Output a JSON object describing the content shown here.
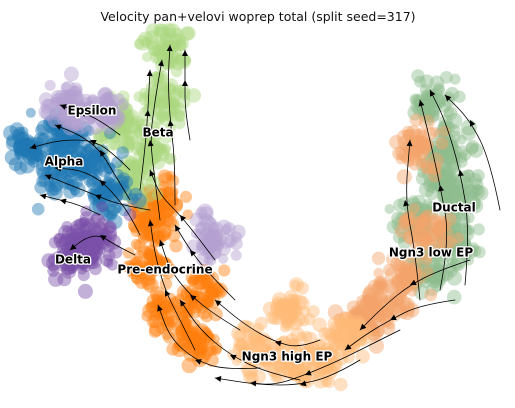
{
  "chart_data": {
    "type": "scatter",
    "title": "Velocity pan+velovi woprep total (split seed=317)",
    "xlabel": "",
    "ylabel": "",
    "grid": false,
    "axes_visible": false,
    "overlay": "streamlines",
    "series": [
      {
        "name": "Ductal",
        "color": "#8fbc8f",
        "centers": [
          [
            434,
            103
          ],
          [
            450,
            150
          ],
          [
            460,
            195
          ],
          [
            455,
            240
          ],
          [
            430,
            275
          ],
          [
            415,
            220
          ],
          [
            440,
            175
          ]
        ]
      },
      {
        "name": "Ngn3 low EP",
        "color": "#f4a46b",
        "centers": [
          [
            420,
            150
          ],
          [
            425,
            230
          ],
          [
            405,
            280
          ],
          [
            380,
            305
          ],
          [
            365,
            320
          ]
        ]
      },
      {
        "name": "Ngn3 high EP",
        "color": "#ffbb78",
        "centers": [
          [
            350,
            335
          ],
          [
            320,
            360
          ],
          [
            290,
            360
          ],
          [
            255,
            350
          ],
          [
            290,
            310
          ]
        ]
      },
      {
        "name": "Pre-endocrine",
        "color": "#ff7f0e",
        "centers": [
          [
            195,
            345
          ],
          [
            170,
            315
          ],
          [
            150,
            265
          ],
          [
            150,
            225
          ],
          [
            160,
            200
          ],
          [
            200,
            290
          ]
        ]
      },
      {
        "name": "Beta",
        "color": "#aad67f",
        "centers": [
          [
            165,
            45
          ],
          [
            165,
            100
          ],
          [
            150,
            150
          ],
          [
            130,
            180
          ],
          [
            120,
            125
          ]
        ]
      },
      {
        "name": "Alpha",
        "color": "#1f77b4",
        "centers": [
          [
            30,
            150
          ],
          [
            60,
            140
          ],
          [
            90,
            160
          ],
          [
            110,
            195
          ],
          [
            60,
            170
          ]
        ]
      },
      {
        "name": "Epsilon",
        "color": "#b39fd1",
        "centers": [
          [
            70,
            105
          ],
          [
            100,
            110
          ],
          [
            215,
            240
          ]
        ]
      },
      {
        "name": "Delta",
        "color": "#7b4fa8",
        "centers": [
          [
            70,
            255
          ],
          [
            85,
            245
          ],
          [
            95,
            240
          ]
        ]
      }
    ],
    "labels": [
      {
        "text": "Ductal",
        "at": [
          454,
          208
        ]
      },
      {
        "text": "Ngn3 low EP",
        "at": [
          431,
          253
        ]
      },
      {
        "text": "Ngn3 high EP",
        "at": [
          287,
          357
        ]
      },
      {
        "text": "Pre-endocrine",
        "at": [
          165,
          270
        ]
      },
      {
        "text": "Beta",
        "at": [
          158,
          133
        ]
      },
      {
        "text": "Alpha",
        "at": [
          64,
          162
        ]
      },
      {
        "text": "Epsilon",
        "at": [
          92,
          111
        ]
      },
      {
        "text": "Delta",
        "at": [
          73,
          260
        ]
      }
    ]
  }
}
